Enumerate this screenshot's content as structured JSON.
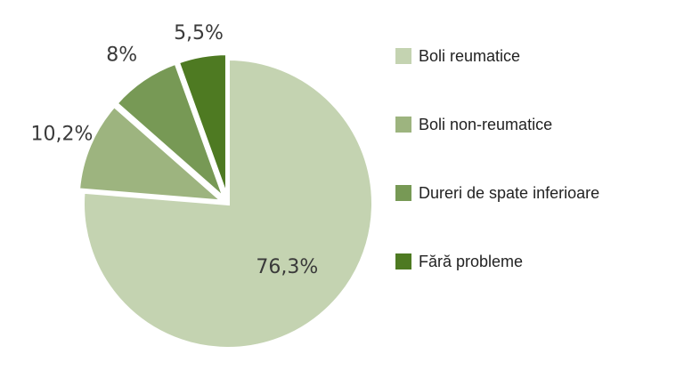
{
  "chart_data": {
    "type": "pie",
    "title": "",
    "legend_position": "right",
    "slices": [
      {
        "label": "Boli reumatice",
        "value": 76.3,
        "value_label": "76,3%",
        "color": "#c4d3b1",
        "exploded": false
      },
      {
        "label": "Boli non-reumatice",
        "value": 10.2,
        "value_label": "10,2%",
        "color": "#9db47f",
        "exploded": true
      },
      {
        "label": "Dureri de spate inferioare",
        "value": 8,
        "value_label": "8%",
        "color": "#779955",
        "exploded": true
      },
      {
        "label": "Fără probleme",
        "value": 5.5,
        "value_label": "5,5%",
        "color": "#4e7a22",
        "exploded": true
      }
    ]
  }
}
